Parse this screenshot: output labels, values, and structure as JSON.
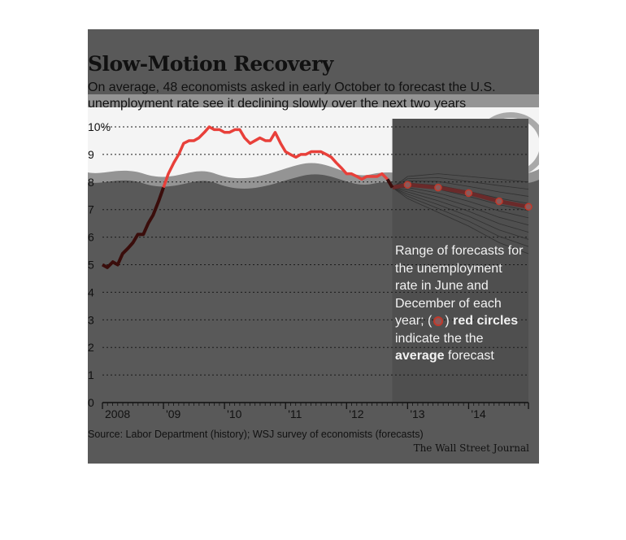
{
  "header": {
    "title": "Slow-Motion Recovery",
    "subtitle": "On average, 48 economists asked in early October to forecast the U.S. unemployment rate see it declining slowly over the next two years"
  },
  "note": {
    "text_before": "Range of forecasts for the unemployment rate in June and December of each year; (",
    "text_after": ")",
    "bold1": "red circles",
    "text_mid": "indicate the the",
    "bold2": "average",
    "text_end": "forecast"
  },
  "footer": {
    "source": "Source: Labor Department (history); WSJ survey of economists (forecasts)",
    "credit": "The Wall Street Journal"
  },
  "colors": {
    "history": "#e8403a",
    "forecast_avg": "#6a2a2a",
    "circle": "#c0392b",
    "band": "#f4f4f4"
  },
  "chart_data": {
    "type": "line",
    "title": "Slow-Motion Recovery",
    "ylim": [
      0,
      10
    ],
    "xlim": [
      2008.0,
      2014.98
    ],
    "y_ticks": [
      {
        "value": 0,
        "label": "0"
      },
      {
        "value": 1,
        "label": "1"
      },
      {
        "value": 2,
        "label": "2"
      },
      {
        "value": 3,
        "label": "3"
      },
      {
        "value": 4,
        "label": "4"
      },
      {
        "value": 5,
        "label": "5"
      },
      {
        "value": 6,
        "label": "6"
      },
      {
        "value": 7,
        "label": "7"
      },
      {
        "value": 8,
        "label": "8"
      },
      {
        "value": 9,
        "label": "9"
      },
      {
        "value": 10,
        "label": "10%"
      }
    ],
    "x_ticks": [
      {
        "value": 2008,
        "label": "2008"
      },
      {
        "value": 2009,
        "label": "'09"
      },
      {
        "value": 2010,
        "label": "'10"
      },
      {
        "value": 2011,
        "label": "'11"
      },
      {
        "value": 2012,
        "label": "'12"
      },
      {
        "value": 2013,
        "label": "'13"
      },
      {
        "value": 2014,
        "label": "'14"
      }
    ],
    "history": [
      [
        2008.0,
        5.0
      ],
      [
        2008.08,
        4.9
      ],
      [
        2008.17,
        5.1
      ],
      [
        2008.25,
        5.0
      ],
      [
        2008.33,
        5.4
      ],
      [
        2008.42,
        5.6
      ],
      [
        2008.5,
        5.8
      ],
      [
        2008.58,
        6.1
      ],
      [
        2008.67,
        6.1
      ],
      [
        2008.75,
        6.5
      ],
      [
        2008.83,
        6.8
      ],
      [
        2008.92,
        7.3
      ],
      [
        2009.0,
        7.8
      ],
      [
        2009.08,
        8.3
      ],
      [
        2009.17,
        8.7
      ],
      [
        2009.25,
        9.0
      ],
      [
        2009.33,
        9.4
      ],
      [
        2009.42,
        9.5
      ],
      [
        2009.5,
        9.5
      ],
      [
        2009.58,
        9.6
      ],
      [
        2009.67,
        9.8
      ],
      [
        2009.75,
        10.0
      ],
      [
        2009.83,
        9.9
      ],
      [
        2009.92,
        9.9
      ],
      [
        2010.0,
        9.8
      ],
      [
        2010.08,
        9.8
      ],
      [
        2010.17,
        9.9
      ],
      [
        2010.25,
        9.9
      ],
      [
        2010.33,
        9.6
      ],
      [
        2010.42,
        9.4
      ],
      [
        2010.5,
        9.5
      ],
      [
        2010.58,
        9.6
      ],
      [
        2010.67,
        9.5
      ],
      [
        2010.75,
        9.5
      ],
      [
        2010.83,
        9.8
      ],
      [
        2010.92,
        9.4
      ],
      [
        2011.0,
        9.1
      ],
      [
        2011.08,
        9.0
      ],
      [
        2011.17,
        8.9
      ],
      [
        2011.25,
        9.0
      ],
      [
        2011.33,
        9.0
      ],
      [
        2011.42,
        9.1
      ],
      [
        2011.5,
        9.1
      ],
      [
        2011.58,
        9.1
      ],
      [
        2011.67,
        9.0
      ],
      [
        2011.75,
        8.9
      ],
      [
        2011.83,
        8.7
      ],
      [
        2011.92,
        8.5
      ],
      [
        2012.0,
        8.3
      ],
      [
        2012.08,
        8.3
      ],
      [
        2012.17,
        8.2
      ],
      [
        2012.25,
        8.1
      ],
      [
        2012.33,
        8.2
      ],
      [
        2012.42,
        8.2
      ],
      [
        2012.5,
        8.2
      ],
      [
        2012.58,
        8.3
      ],
      [
        2012.67,
        8.1
      ],
      [
        2012.75,
        7.8
      ]
    ],
    "forecast_average": [
      [
        2012.75,
        7.8
      ],
      [
        2013.0,
        7.9
      ],
      [
        2013.5,
        7.8
      ],
      [
        2014.0,
        7.6
      ],
      [
        2014.5,
        7.3
      ],
      [
        2014.98,
        7.1
      ]
    ],
    "forecast_range": [
      [
        2012.75,
        7.8,
        7.8
      ],
      [
        2013.0,
        7.4,
        8.2
      ],
      [
        2013.5,
        6.9,
        8.3
      ],
      [
        2014.0,
        6.4,
        8.2
      ],
      [
        2014.5,
        5.8,
        8.1
      ],
      [
        2014.98,
        5.4,
        8.0
      ]
    ]
  }
}
